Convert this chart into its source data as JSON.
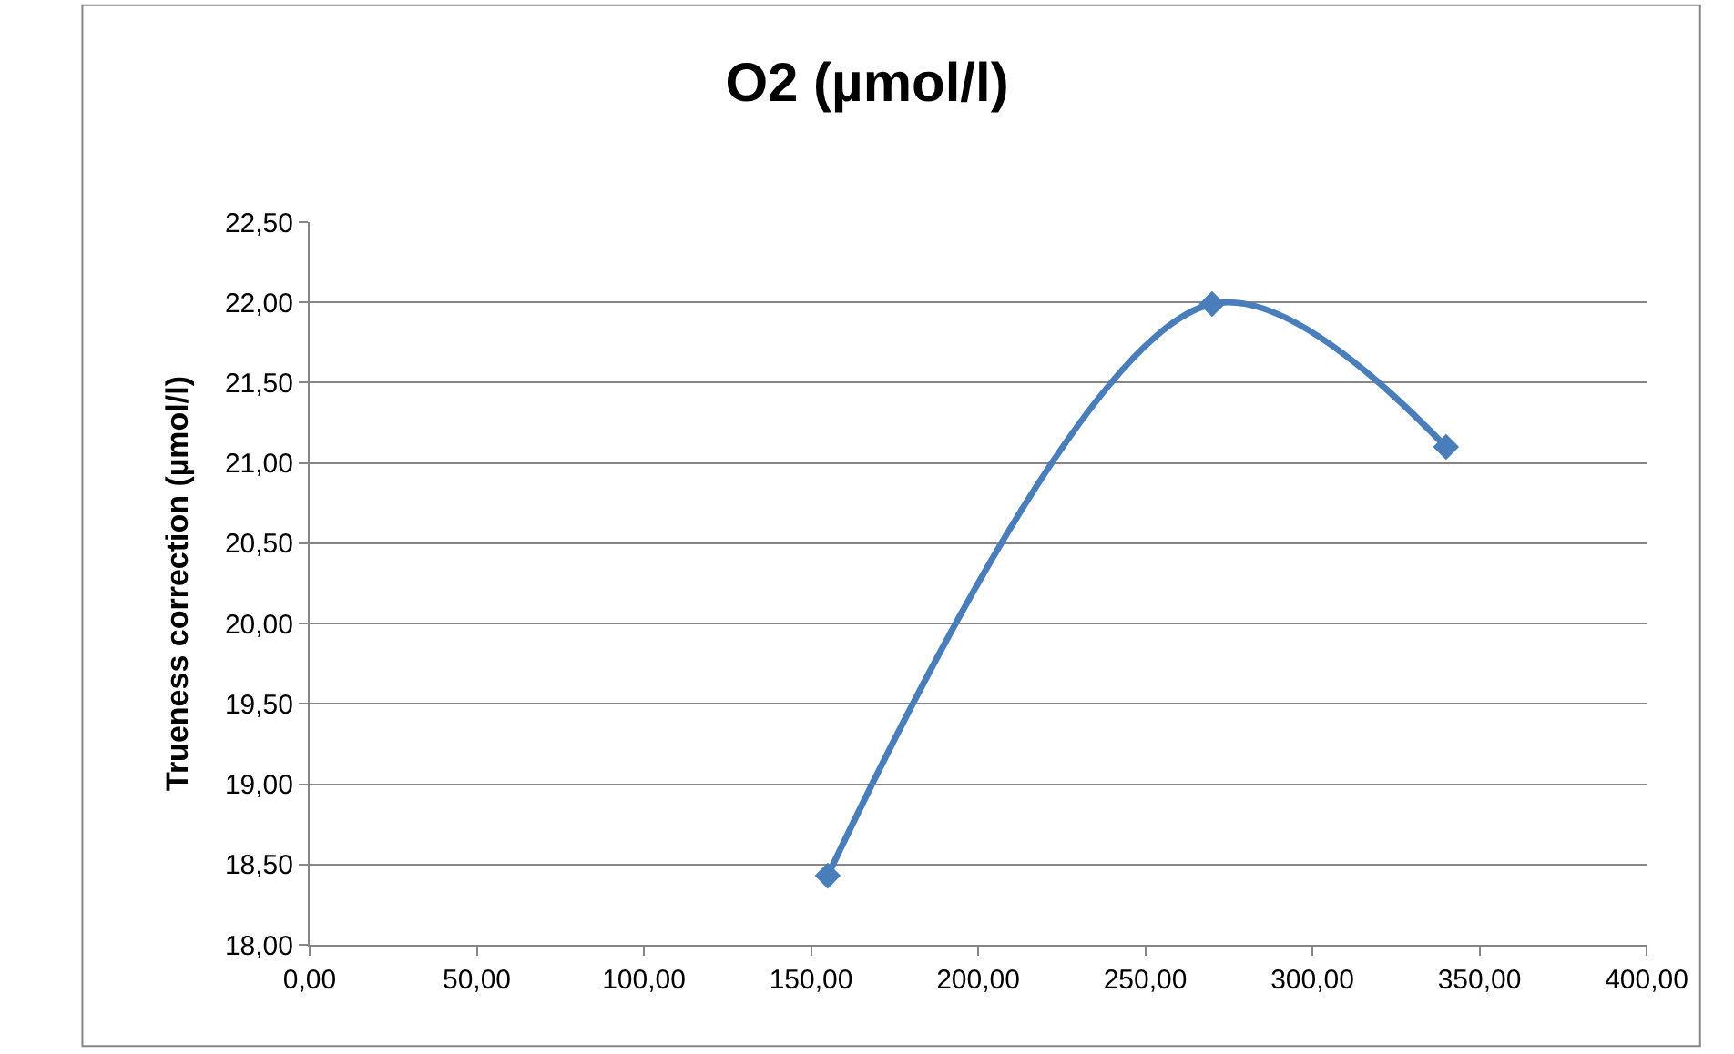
{
  "chart_data": {
    "type": "line",
    "title": "O2 (µmol/l)",
    "ylabel": "Trueness correction (µmol/l)",
    "x": [
      155,
      270,
      340
    ],
    "series": [
      {
        "color": "#4a7ebb",
        "values": [
          18.43,
          21.99,
          21.1
        ]
      }
    ],
    "xlim": [
      0,
      400
    ],
    "xticks": [
      {
        "value": 0,
        "label": "0,00"
      },
      {
        "value": 50,
        "label": "50,00"
      },
      {
        "value": 100,
        "label": "100,00"
      },
      {
        "value": 150,
        "label": "150,00"
      },
      {
        "value": 200,
        "label": "200,00"
      },
      {
        "value": 250,
        "label": "250,00"
      },
      {
        "value": 300,
        "label": "300,00"
      },
      {
        "value": 350,
        "label": "350,00"
      },
      {
        "value": 400,
        "label": "400,00"
      }
    ],
    "ylim": [
      18,
      22.5
    ],
    "yticks": [
      {
        "value": 18,
        "label": "18,00"
      },
      {
        "value": 18.5,
        "label": "18,50"
      },
      {
        "value": 19,
        "label": "19,00"
      },
      {
        "value": 19.5,
        "label": "19,50"
      },
      {
        "value": 20,
        "label": "20,00"
      },
      {
        "value": 20.5,
        "label": "20,50"
      },
      {
        "value": 21,
        "label": "21,00"
      },
      {
        "value": 21.5,
        "label": "21,50"
      },
      {
        "value": 22,
        "label": "22,00"
      },
      {
        "value": 22.5,
        "label": "22,50"
      }
    ],
    "grid": "y",
    "marker": "diamond",
    "line_style": "solid",
    "legend": false
  }
}
